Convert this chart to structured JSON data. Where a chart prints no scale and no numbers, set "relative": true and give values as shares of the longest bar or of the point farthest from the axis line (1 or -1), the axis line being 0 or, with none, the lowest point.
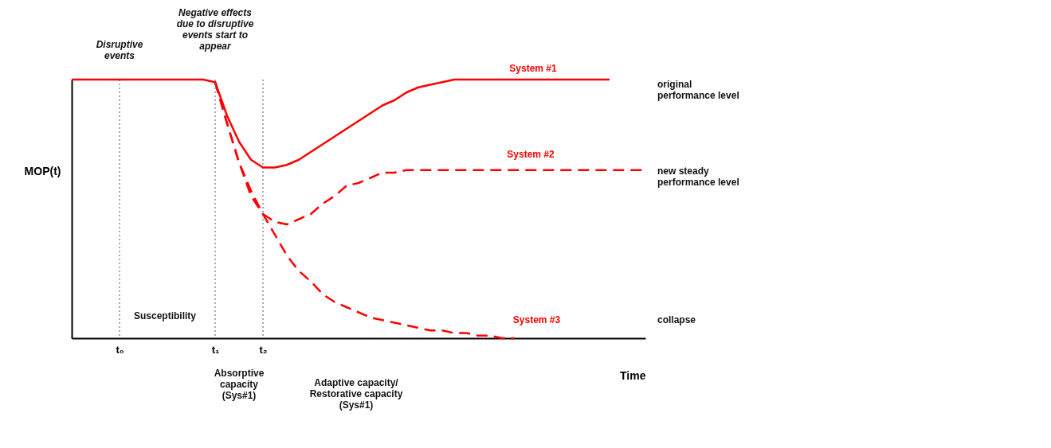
{
  "chart_data": {
    "type": "line",
    "relative": true,
    "xlabel": "Time",
    "ylabel": "MOP(t)",
    "grid": false,
    "categories": [
      null,
      null,
      null,
      null,
      "t₀",
      null,
      null,
      null,
      null,
      null,
      null,
      null,
      "t₁",
      null,
      null,
      null,
      "t₂",
      null,
      null,
      null,
      null,
      null,
      null,
      null,
      null,
      null,
      null,
      null,
      null,
      null,
      null,
      null,
      null,
      null,
      null,
      null,
      null,
      null,
      null,
      null,
      null,
      null,
      null,
      null,
      null,
      null,
      null,
      null,
      null
    ],
    "series": [
      {
        "name": "System #1",
        "color": "#ff0000",
        "line_style": "solid",
        "values": [
          1.0,
          1.0,
          1.0,
          1.0,
          1.0,
          1.0,
          1.0,
          1.0,
          1.0,
          1.0,
          1.0,
          1.0,
          0.99,
          0.86,
          0.76,
          0.69,
          0.66,
          0.66,
          0.67,
          0.69,
          0.72,
          0.75,
          0.78,
          0.81,
          0.84,
          0.87,
          0.9,
          0.92,
          0.95,
          0.97,
          0.98,
          0.99,
          1.0,
          1.0,
          1.0,
          1.0,
          1.0,
          1.0,
          1.0,
          1.0,
          1.0,
          1.0,
          1.0,
          1.0,
          1.0,
          1.0,
          null,
          null,
          null
        ]
      },
      {
        "name": "System #2",
        "color": "#ff0000",
        "line_style": "dashed",
        "values": [
          null,
          null,
          null,
          null,
          null,
          null,
          null,
          null,
          null,
          null,
          null,
          null,
          0.99,
          0.83,
          0.68,
          0.57,
          0.48,
          0.45,
          0.44,
          0.46,
          0.48,
          0.52,
          0.55,
          0.59,
          0.6,
          0.62,
          0.64,
          0.64,
          0.65,
          0.65,
          0.65,
          0.65,
          0.65,
          0.65,
          0.65,
          0.65,
          0.65,
          0.65,
          0.65,
          0.65,
          0.65,
          0.65,
          0.65,
          0.65,
          0.65,
          0.65,
          0.65,
          0.65,
          0.65
        ]
      },
      {
        "name": "System #3",
        "color": "#ff0000",
        "line_style": "dashed",
        "values": [
          null,
          null,
          null,
          null,
          null,
          null,
          null,
          null,
          null,
          null,
          null,
          null,
          0.99,
          0.83,
          0.68,
          0.55,
          0.48,
          0.4,
          0.32,
          0.26,
          0.22,
          0.17,
          0.14,
          0.12,
          0.1,
          0.08,
          0.07,
          0.06,
          0.05,
          0.04,
          0.03,
          0.03,
          0.02,
          0.02,
          0.01,
          0.01,
          0.0,
          0.0,
          null,
          null,
          null,
          null,
          null,
          null,
          null,
          null,
          null,
          null,
          null
        ]
      }
    ],
    "ref_lines": [
      {
        "axis": "x",
        "value": "t₀",
        "color": "#555555",
        "line_style": "dotted"
      },
      {
        "axis": "x",
        "value": "t₁",
        "color": "#555555",
        "line_style": "dotted"
      },
      {
        "axis": "x",
        "value": "t₂",
        "color": "#555555",
        "line_style": "dotted"
      }
    ],
    "annotations": [
      "Disruptive\nevents",
      "Negative effects\ndue to disruptive\nevents start to\nappear",
      "original\nperformance level",
      "new steady\nperformance level",
      "collapse",
      "Susceptibility",
      "Absorptive\ncapacity\n(Sys#1)",
      "Adaptive capacity/\nRestorative capacity\n(Sys#1)"
    ]
  }
}
